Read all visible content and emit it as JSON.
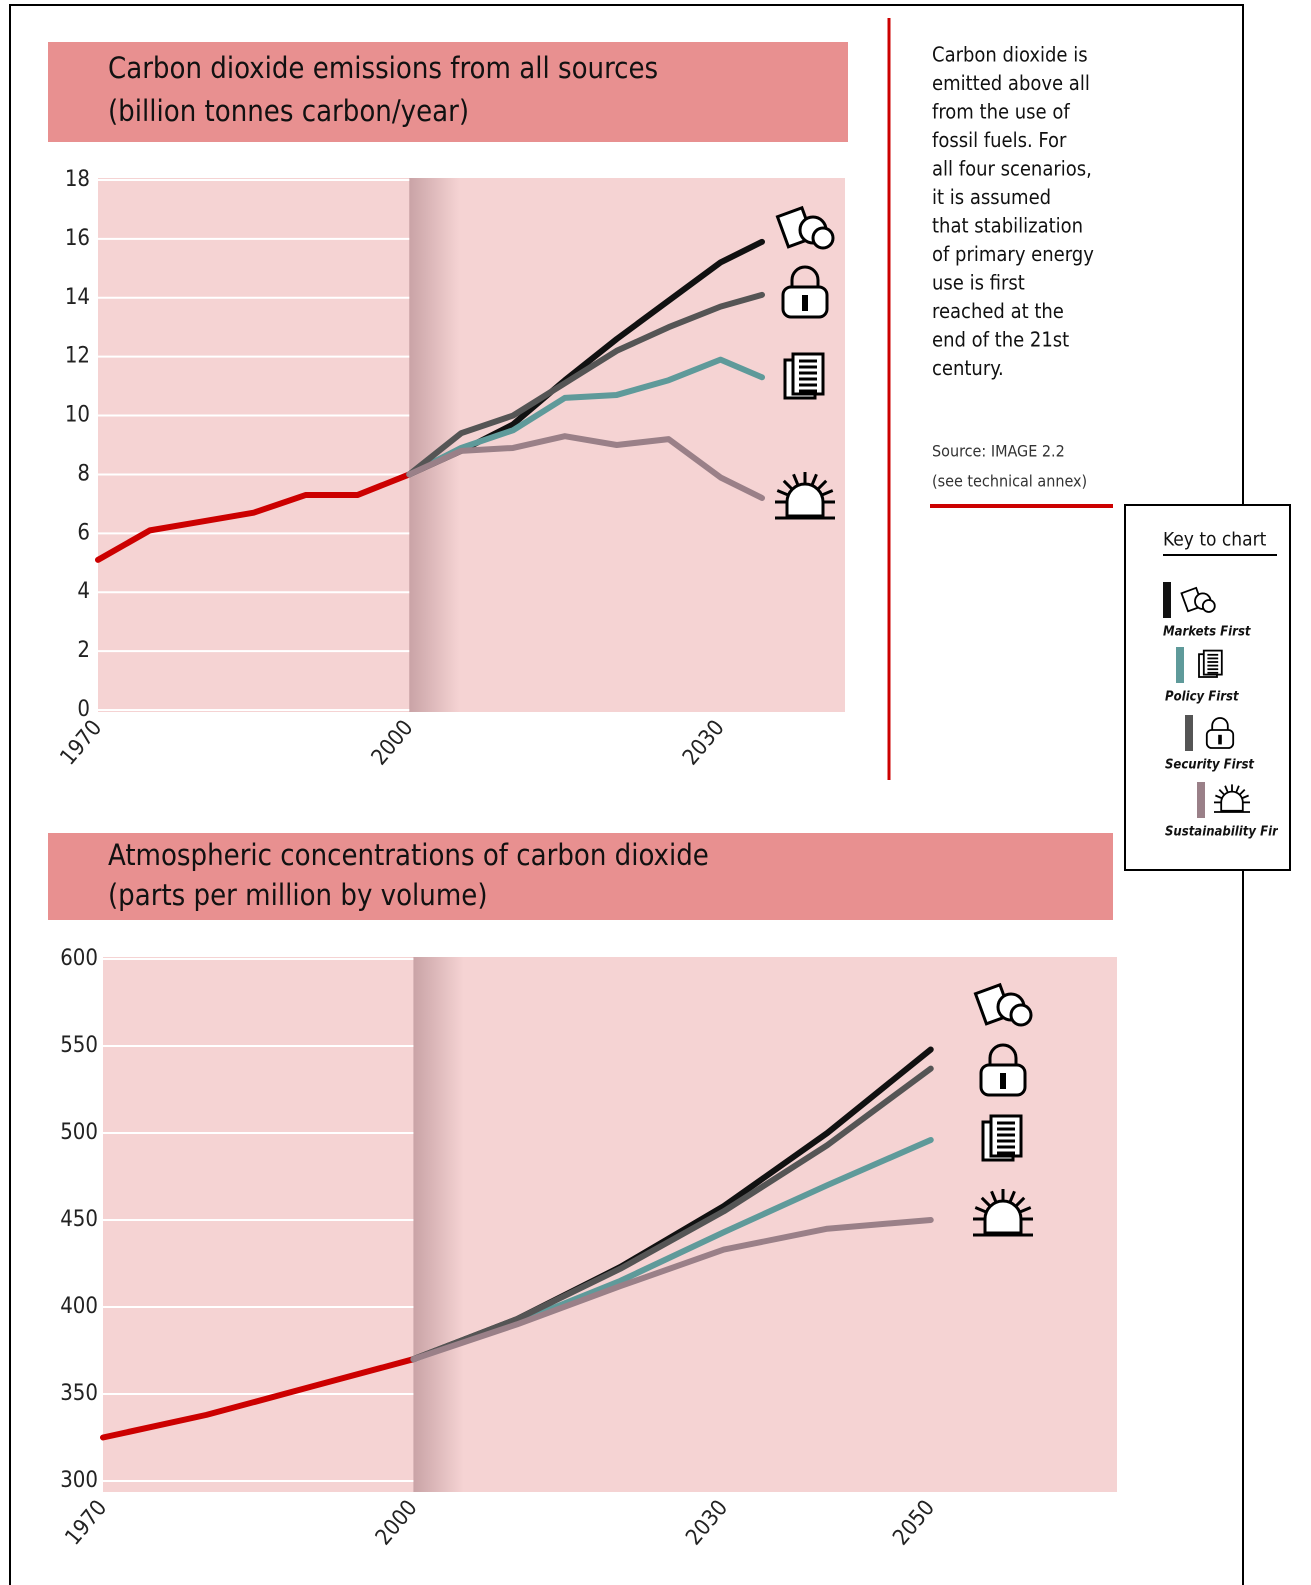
{
  "chart_data": [
    {
      "type": "line",
      "title": "Carbon dioxide emissions from all sources",
      "subtitle": "(billion tonnes carbon/year)",
      "x": [
        1970,
        1975,
        1980,
        1985,
        1990,
        1995,
        2000,
        2005,
        2010,
        2015,
        2020,
        2025,
        2030,
        2034
      ],
      "xlim": [
        1970,
        2042
      ],
      "xticks": [
        1970,
        2000,
        2030
      ],
      "ylim": [
        0,
        18
      ],
      "yticks": [
        0,
        2,
        4,
        6,
        8,
        10,
        12,
        14,
        16,
        18
      ],
      "grid": true,
      "series": [
        {
          "color": "#cc0000",
          "values": [
            5.1,
            6.1,
            6.4,
            6.7,
            7.3,
            7.3,
            8.0,
            null,
            null,
            null,
            null,
            null,
            null,
            null
          ]
        },
        {
          "name": "Markets First",
          "color": "#111111",
          "values": [
            null,
            null,
            null,
            null,
            null,
            null,
            8.0,
            8.8,
            9.7,
            11.2,
            12.6,
            13.9,
            15.2,
            15.9
          ]
        },
        {
          "name": "Policy First",
          "color": "#5f9a9a",
          "values": [
            null,
            null,
            null,
            null,
            null,
            null,
            8.0,
            8.9,
            9.5,
            10.6,
            10.7,
            11.2,
            11.9,
            11.3
          ]
        },
        {
          "name": "Security First",
          "color": "#555555",
          "values": [
            null,
            null,
            null,
            null,
            null,
            null,
            8.0,
            9.4,
            10.0,
            11.1,
            12.2,
            13.0,
            13.7,
            14.1
          ]
        },
        {
          "name": "Sustainability First",
          "color": "#9a8088",
          "values": [
            null,
            null,
            null,
            null,
            null,
            null,
            8.0,
            8.8,
            8.9,
            9.3,
            9.0,
            9.2,
            7.9,
            7.2
          ]
        }
      ]
    },
    {
      "type": "line",
      "title": "Atmospheric concentrations of carbon dioxide",
      "subtitle": "(parts per million by volume)",
      "x": [
        1970,
        1980,
        1990,
        2000,
        2010,
        2020,
        2030,
        2040,
        2050
      ],
      "xlim": [
        1970,
        2068
      ],
      "xticks": [
        1970,
        2000,
        2030,
        2050
      ],
      "ylim": [
        300,
        600
      ],
      "yticks": [
        300,
        350,
        400,
        450,
        500,
        550,
        600
      ],
      "grid": true,
      "series": [
        {
          "color": "#cc0000",
          "values": [
            325,
            338,
            354,
            370,
            null,
            null,
            null,
            null,
            null
          ]
        },
        {
          "name": "Markets First",
          "color": "#111111",
          "values": [
            null,
            null,
            null,
            370,
            393,
            423,
            458,
            500,
            548
          ]
        },
        {
          "name": "Policy First",
          "color": "#5f9a9a",
          "values": [
            null,
            null,
            null,
            370,
            391,
            415,
            443,
            470,
            496
          ]
        },
        {
          "name": "Security First",
          "color": "#555555",
          "values": [
            null,
            null,
            null,
            370,
            393,
            422,
            455,
            493,
            537
          ]
        },
        {
          "name": "Sustainability First",
          "color": "#9a8088",
          "values": [
            null,
            null,
            null,
            370,
            390,
            412,
            433,
            445,
            450
          ]
        }
      ]
    }
  ],
  "note": {
    "lines": [
      "Carbon dioxide is",
      "emitted above all",
      "from the use of",
      "fossil fuels. For",
      "all four scenarios,",
      "it is assumed",
      "that stabilization",
      "of primary energy",
      "use is first",
      "reached at the",
      "end of the 21st",
      "century."
    ],
    "source": [
      "Source: IMAGE 2.2",
      "(see technical annex)"
    ]
  },
  "key": {
    "title": "Key to chart"
  }
}
